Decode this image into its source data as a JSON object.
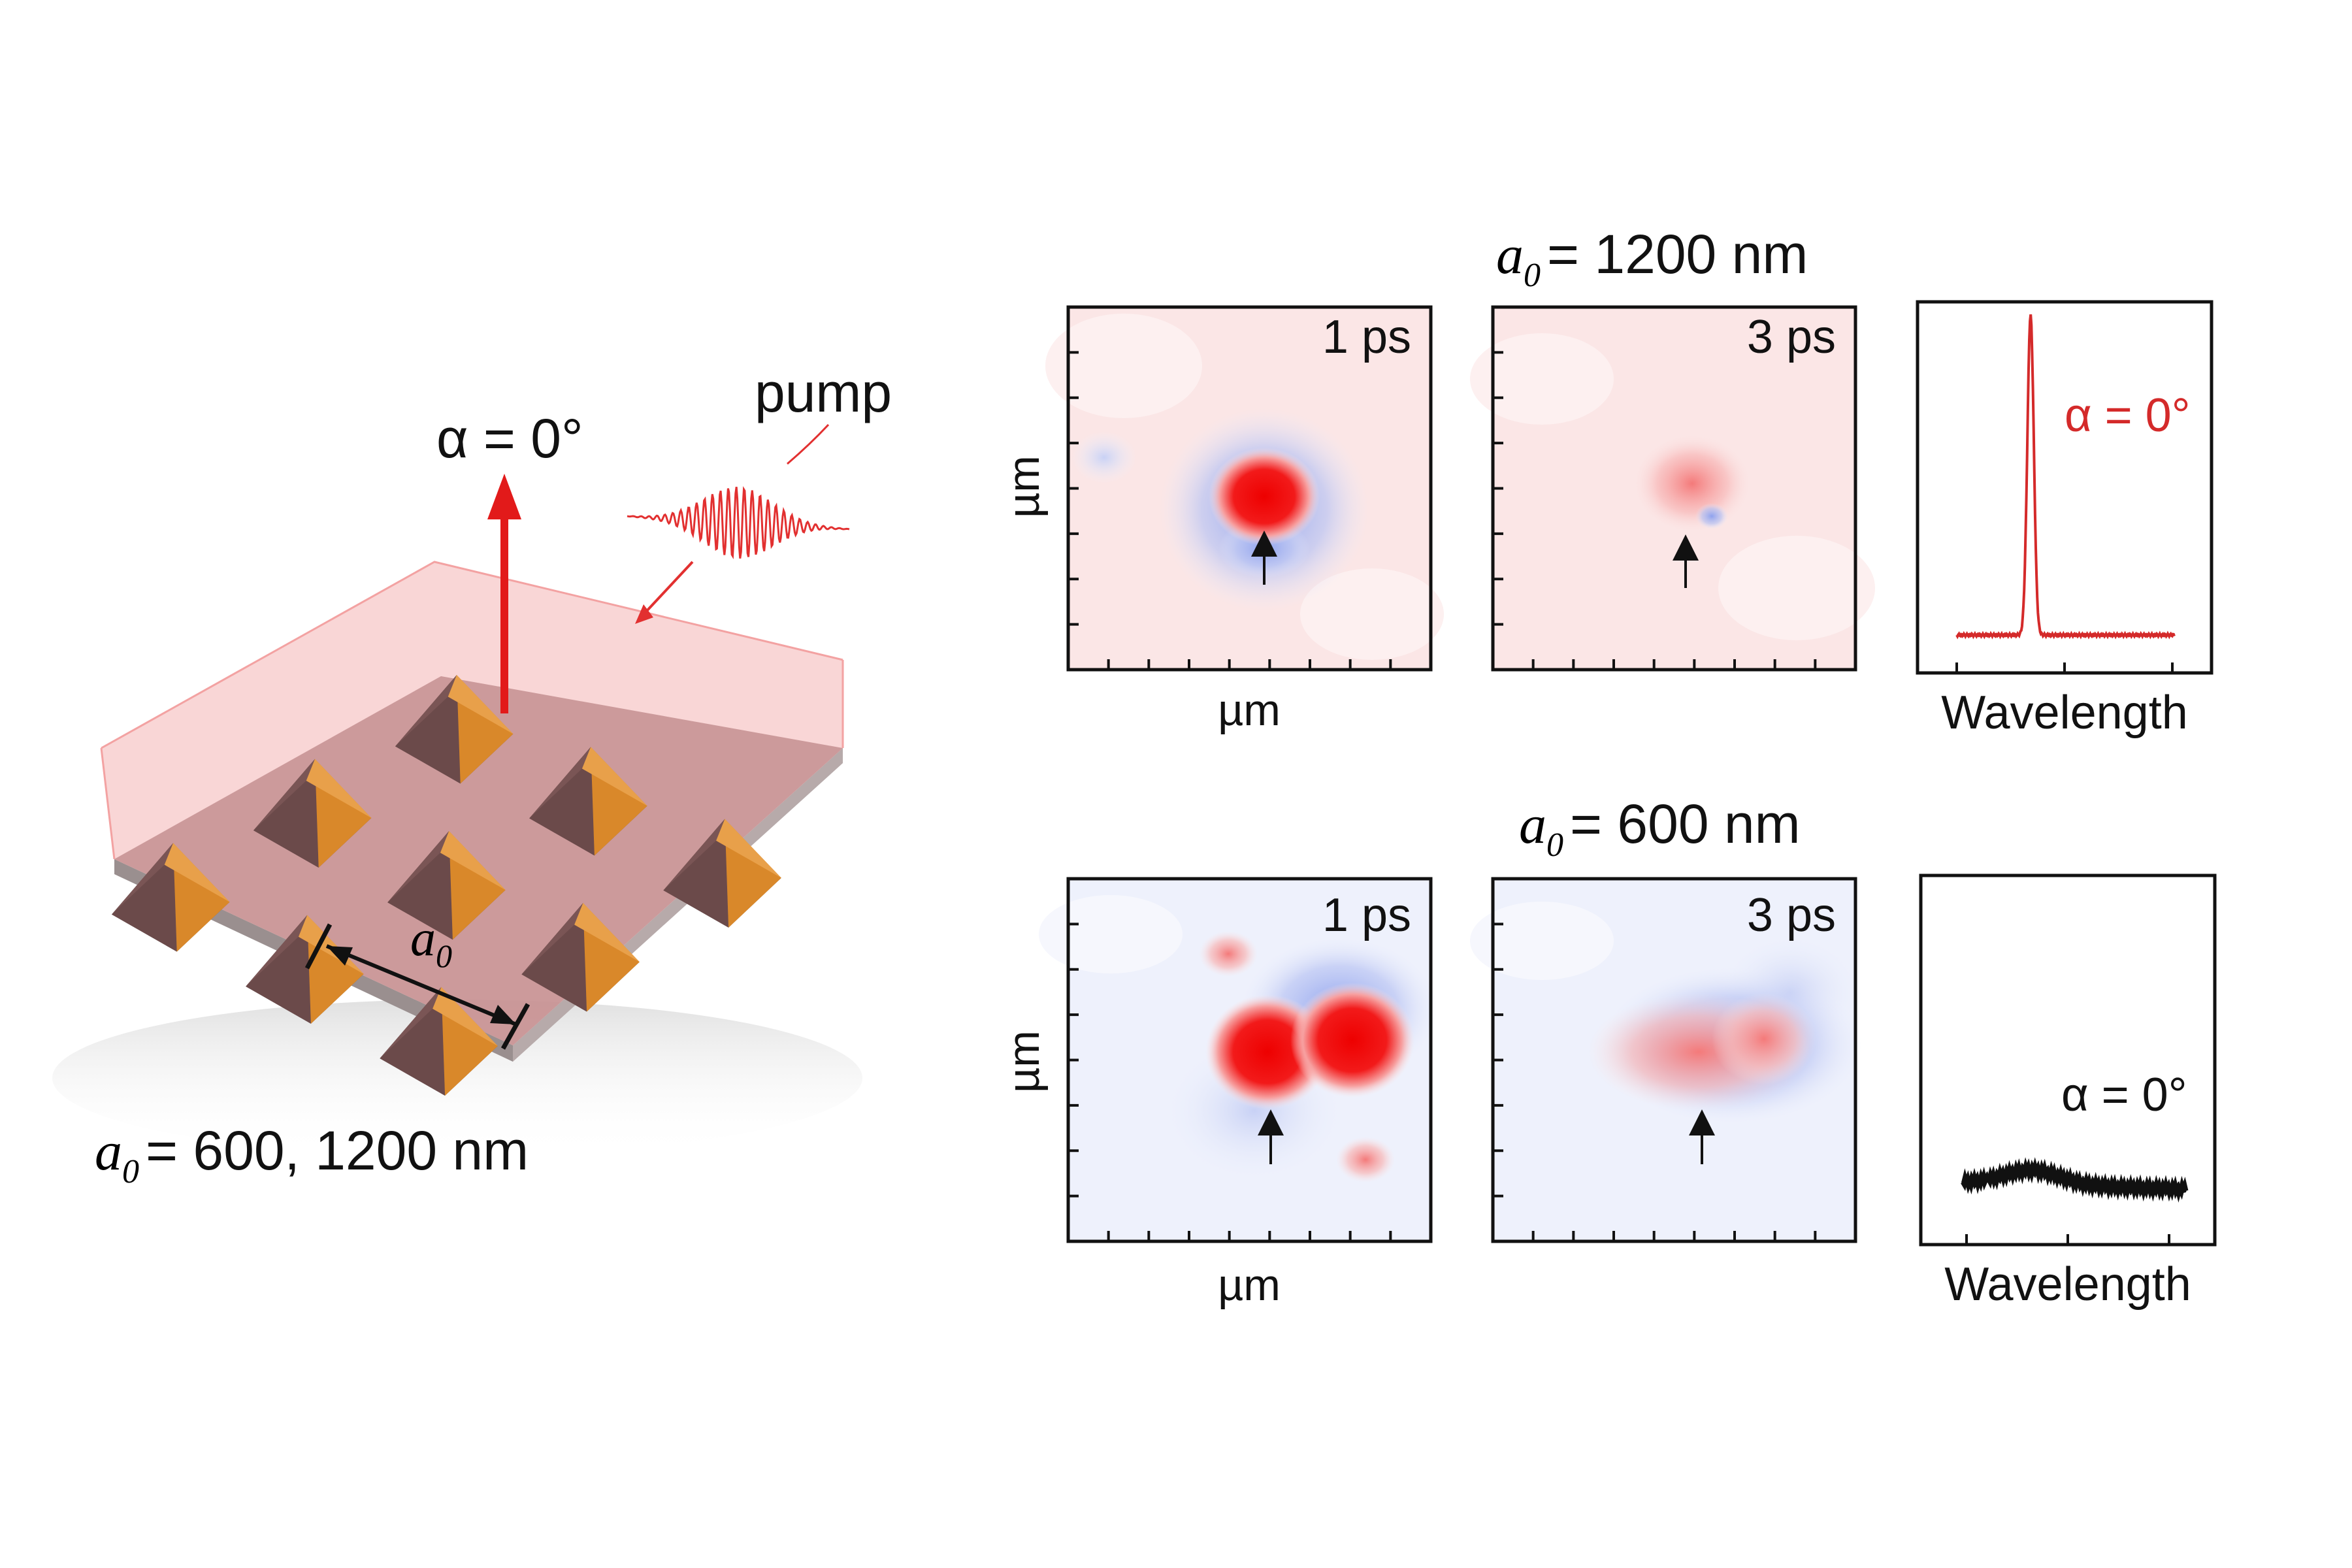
{
  "schematic": {
    "pump_label": "pump",
    "emission_alpha": "α = 0°",
    "a0_symbol": "a",
    "a0_subscript": "0",
    "a0_values_text": "= 600, 1200 nm",
    "colors": {
      "beam": "#e21a1a",
      "pyramid_light": "#d9882a",
      "pyramid_dark": "#6b4a4a",
      "substrate": "#c79a9a"
    }
  },
  "rows": [
    {
      "heading_symbol": "a",
      "heading_subscript": "0",
      "heading_value": "= 1200 nm",
      "map_1_time": "1 ps",
      "map_2_time": "3 ps",
      "x_axis_label": "µm",
      "y_axis_label": "µm",
      "spectrum_label": "α = 0°",
      "spectrum_color": "#d42a2a",
      "spectrum_xlabel": "Wavelength"
    },
    {
      "heading_symbol": "a",
      "heading_subscript": "0",
      "heading_value": "= 600 nm",
      "map_1_time": "1 ps",
      "map_2_time": "3 ps",
      "x_axis_label": "µm",
      "y_axis_label": "µm",
      "spectrum_label": "α = 0°",
      "spectrum_color": "#111111",
      "spectrum_xlabel": "Wavelength"
    }
  ]
}
